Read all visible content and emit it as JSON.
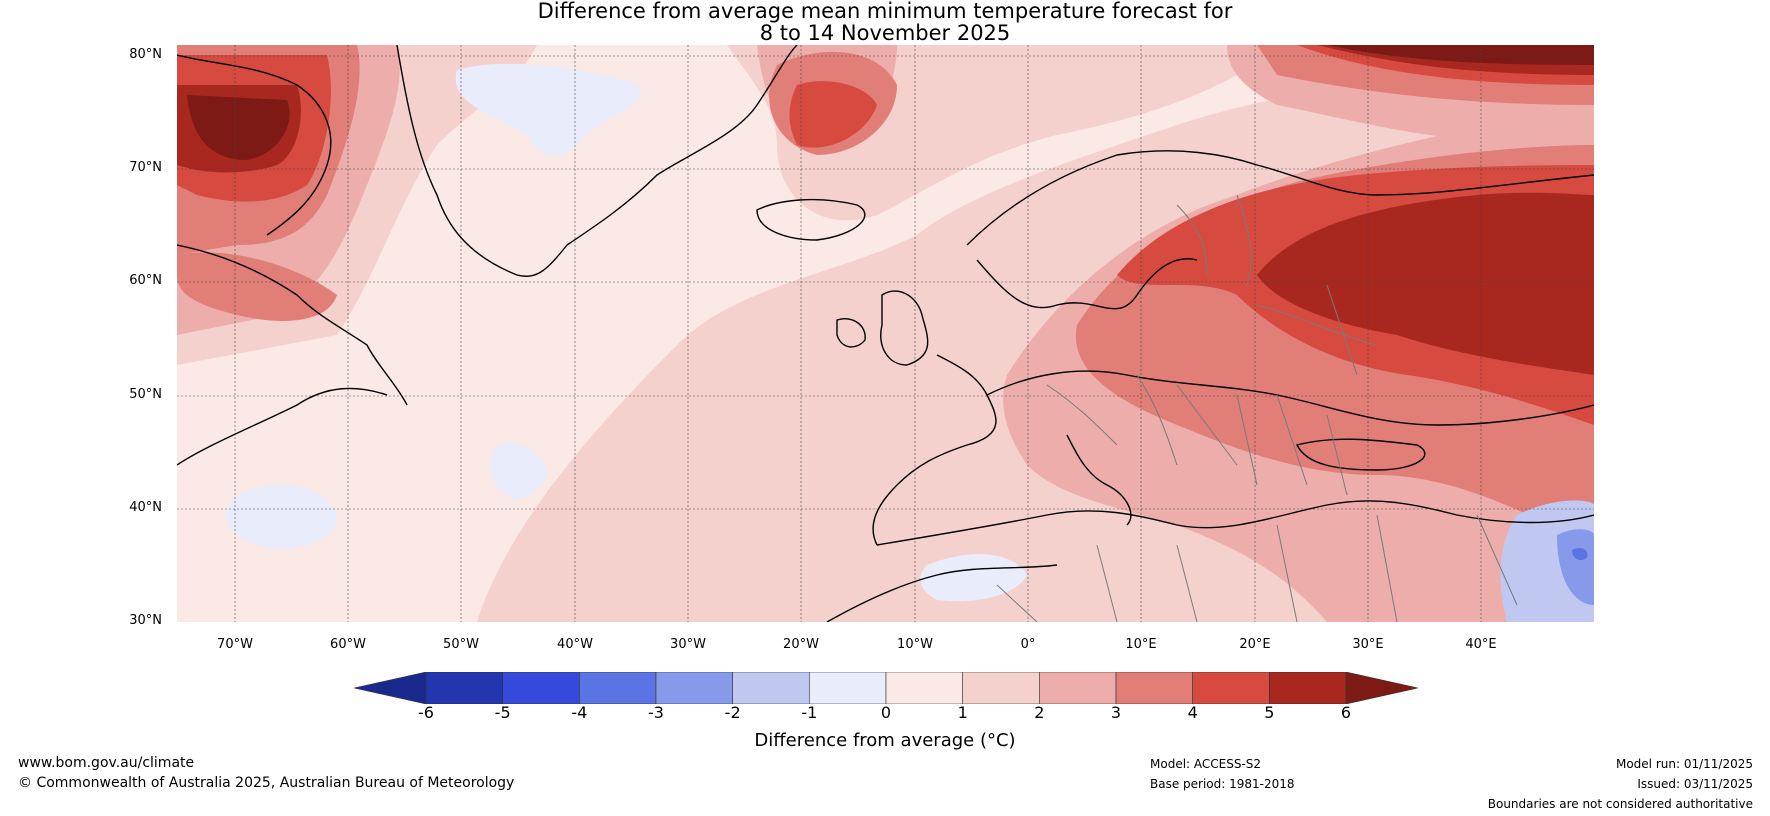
{
  "title": {
    "line1": "Difference from average mean minimum temperature forecast for",
    "line2": "8 to 14 November 2025"
  },
  "map": {
    "lat_labels": [
      "80°N",
      "70°N",
      "60°N",
      "50°N",
      "40°N",
      "30°N"
    ],
    "lon_labels": [
      "70°W",
      "60°W",
      "50°W",
      "40°W",
      "30°W",
      "20°W",
      "10°W",
      "0°",
      "10°E",
      "20°E",
      "30°E",
      "40°E"
    ]
  },
  "colorbar": {
    "ticks": [
      "-6",
      "-5",
      "-4",
      "-3",
      "-2",
      "-1",
      "0",
      "1",
      "2",
      "3",
      "4",
      "5",
      "6"
    ],
    "colors": [
      "#1a2a8c",
      "#2436ad",
      "#3549dd",
      "#5b74e4",
      "#8799ea",
      "#c0c8f2",
      "#e8ecfb",
      "#fbe9e6",
      "#f5d1ce",
      "#edaeab",
      "#e17e78",
      "#d74a40",
      "#a82820",
      "#7d1a15"
    ],
    "label": "Difference from average (°C)"
  },
  "footer": {
    "website": "www.bom.gov.au/climate",
    "copyright": "© Commonwealth of Australia 2025, Australian Bureau of Meteorology",
    "model": "Model: ACCESS-S2",
    "base_period": "Base period: 1981-2018",
    "model_run": "Model run: 01/11/2025",
    "issued": "Issued: 03/11/2025",
    "disclaimer": "Boundaries are not considered authoritative"
  }
}
